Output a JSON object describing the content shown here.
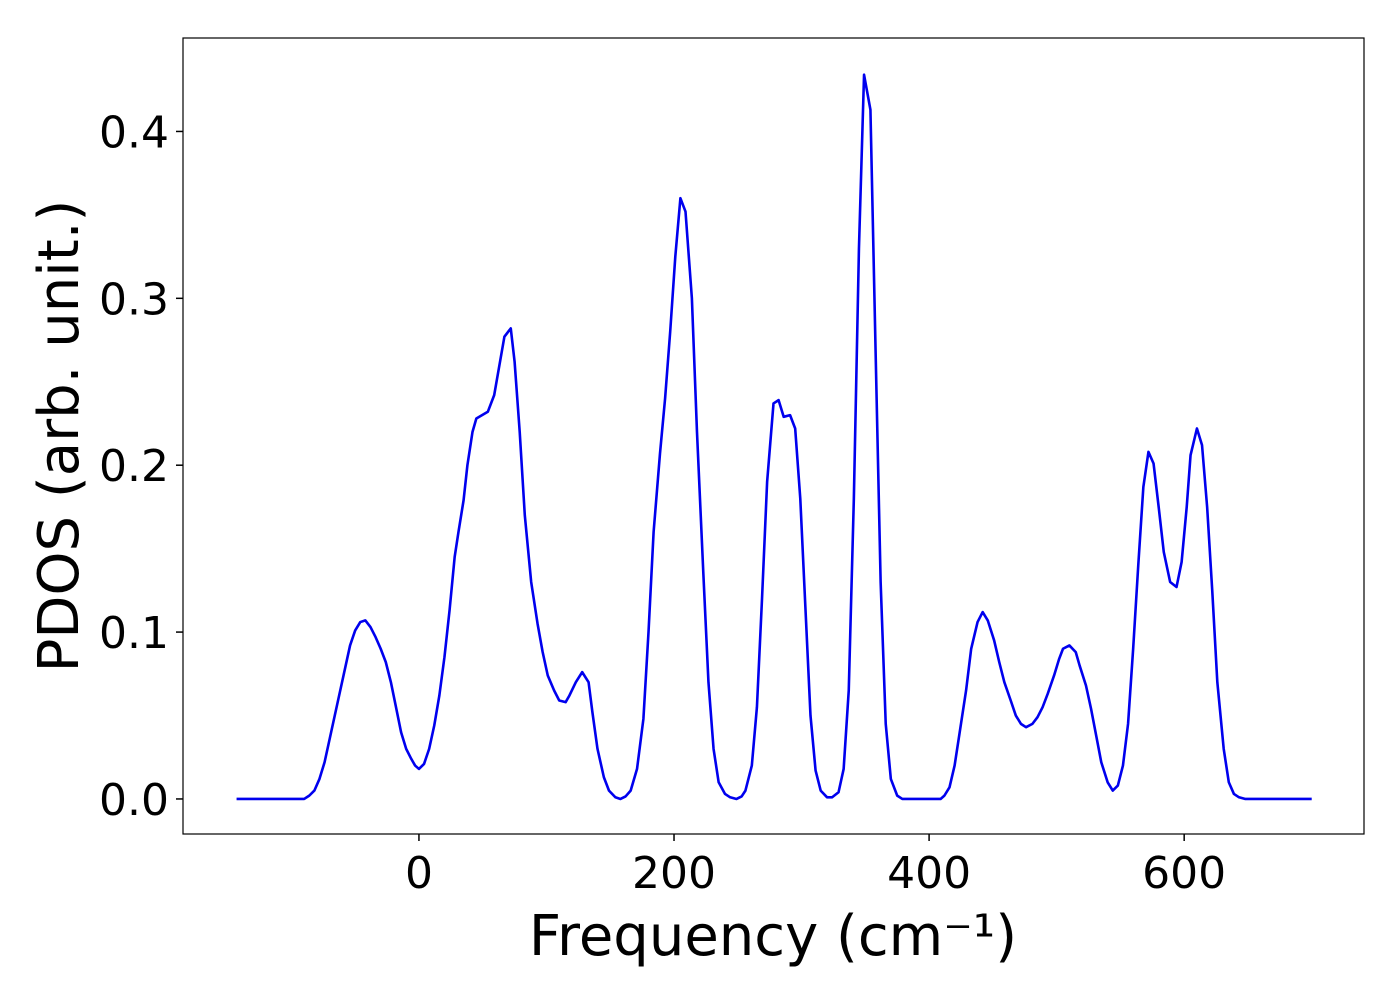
{
  "chart_data": {
    "type": "line",
    "xlabel": "Frequency (cm⁻¹)",
    "ylabel": "PDOS (arb. unit.)",
    "xlim": [
      -185,
      741
    ],
    "ylim": [
      -0.021,
      0.456
    ],
    "xticks": [
      0,
      200,
      400,
      600
    ],
    "yticks": [
      {
        "value": 0,
        "label": "0.0"
      },
      0.1,
      0.2,
      0.3,
      0.4
    ],
    "grid": false,
    "x": [
      -143,
      -90,
      -86,
      -82,
      -78,
      -74,
      -70,
      -66,
      -62,
      -58,
      -54,
      -50,
      -46,
      -42,
      -38,
      -34,
      -30,
      -26,
      -22,
      -18,
      -14,
      -10,
      -6,
      -3,
      0,
      4,
      8,
      12,
      16,
      20,
      24,
      28,
      31,
      35,
      38,
      42,
      45,
      54,
      59,
      67,
      72,
      75,
      79,
      83,
      88,
      93,
      97,
      101,
      106,
      110,
      115,
      118,
      123,
      128,
      133,
      136,
      140,
      145,
      149,
      154,
      158,
      162,
      166,
      171,
      176,
      180,
      184,
      189,
      193,
      197,
      201,
      205,
      209,
      214,
      218,
      223,
      227,
      231,
      235,
      240,
      244,
      249,
      253,
      256,
      261,
      265,
      269,
      273,
      278,
      282,
      286,
      291,
      295,
      299,
      303,
      307,
      311,
      315,
      320,
      324,
      329,
      333,
      337,
      341,
      345,
      349,
      354,
      358,
      362,
      366,
      370,
      375,
      379,
      409,
      412,
      416,
      420,
      424,
      429,
      433,
      438,
      442,
      446,
      451,
      455,
      459,
      464,
      468,
      472,
      476,
      481,
      485,
      489,
      493,
      498,
      502,
      505,
      510,
      515,
      518,
      523,
      527,
      531,
      535,
      540,
      544,
      548,
      552,
      556,
      560,
      564,
      568,
      572,
      576,
      580,
      584,
      589,
      594,
      598,
      602,
      605,
      610,
      614,
      618,
      622,
      626,
      631,
      635,
      639,
      643,
      648,
      700
    ],
    "series": [
      {
        "name": "PDOS",
        "color": "#0000ee",
        "values": [
          0,
          0,
          0.002,
          0.005,
          0.012,
          0.022,
          0.036,
          0.05,
          0.064,
          0.078,
          0.092,
          0.101,
          0.106,
          0.107,
          0.103,
          0.097,
          0.09,
          0.082,
          0.07,
          0.055,
          0.04,
          0.03,
          0.024,
          0.02,
          0.018,
          0.021,
          0.03,
          0.044,
          0.062,
          0.085,
          0.113,
          0.145,
          0.16,
          0.179,
          0.2,
          0.22,
          0.228,
          0.232,
          0.242,
          0.277,
          0.282,
          0.262,
          0.22,
          0.17,
          0.13,
          0.105,
          0.088,
          0.074,
          0.065,
          0.059,
          0.058,
          0.062,
          0.07,
          0.076,
          0.07,
          0.052,
          0.03,
          0.013,
          0.005,
          0.001,
          0,
          0.0015,
          0.005,
          0.018,
          0.048,
          0.1,
          0.16,
          0.207,
          0.24,
          0.28,
          0.325,
          0.36,
          0.352,
          0.3,
          0.22,
          0.135,
          0.07,
          0.03,
          0.01,
          0.003,
          0.001,
          0,
          0.0015,
          0.005,
          0.02,
          0.055,
          0.12,
          0.19,
          0.237,
          0.239,
          0.229,
          0.23,
          0.222,
          0.18,
          0.115,
          0.05,
          0.017,
          0.005,
          0.001,
          0.001,
          0.004,
          0.018,
          0.065,
          0.18,
          0.33,
          0.434,
          0.413,
          0.27,
          0.13,
          0.045,
          0.012,
          0.002,
          0,
          0,
          0.002,
          0.007,
          0.02,
          0.04,
          0.065,
          0.09,
          0.106,
          0.112,
          0.107,
          0.095,
          0.082,
          0.07,
          0.059,
          0.05,
          0.045,
          0.043,
          0.045,
          0.049,
          0.055,
          0.063,
          0.074,
          0.084,
          0.09,
          0.092,
          0.088,
          0.08,
          0.068,
          0.054,
          0.038,
          0.022,
          0.01,
          0.005,
          0.008,
          0.02,
          0.045,
          0.09,
          0.14,
          0.187,
          0.208,
          0.201,
          0.175,
          0.148,
          0.13,
          0.127,
          0.142,
          0.175,
          0.206,
          0.222,
          0.212,
          0.175,
          0.125,
          0.07,
          0.03,
          0.01,
          0.003,
          0.001,
          0,
          0
        ]
      }
    ]
  }
}
